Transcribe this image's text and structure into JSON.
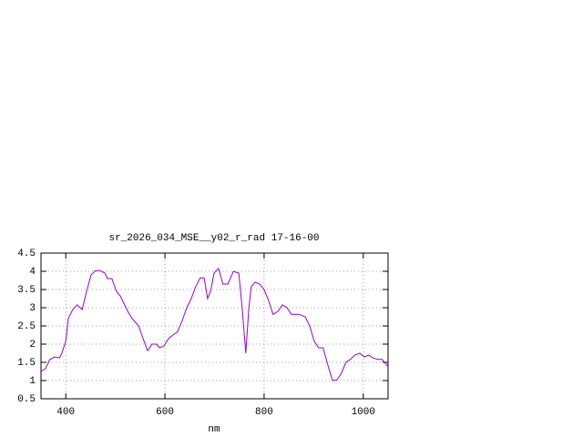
{
  "chart_data": {
    "type": "line",
    "title": "sr_2026_034_MSE__y02_r_rad 17-16-00",
    "xlabel": "nm",
    "x": [
      350,
      359,
      368,
      378,
      387,
      392,
      400,
      405,
      414,
      423,
      429,
      433,
      442,
      451,
      460,
      469,
      479,
      484,
      493,
      502,
      510,
      525,
      534,
      547,
      556,
      565,
      574,
      583,
      589,
      598,
      607,
      616,
      625,
      635,
      644,
      653,
      662,
      671,
      679,
      686,
      692,
      699,
      708,
      717,
      727,
      738,
      749,
      756,
      763,
      769,
      774,
      782,
      791,
      800,
      809,
      818,
      828,
      837,
      846,
      855,
      870,
      883,
      892,
      901,
      910,
      919,
      928,
      938,
      947,
      956,
      965,
      974,
      983,
      993,
      1002,
      1011,
      1020,
      1029,
      1038,
      1050
    ],
    "series": [
      {
        "color": "#9400d3",
        "values": [
          1.25,
          1.33,
          1.58,
          1.65,
          1.62,
          1.75,
          2.08,
          2.7,
          2.95,
          3.08,
          3.0,
          2.95,
          3.45,
          3.9,
          4.02,
          4.02,
          3.95,
          3.8,
          3.8,
          3.45,
          3.32,
          2.9,
          2.7,
          2.5,
          2.15,
          1.82,
          2.0,
          2.0,
          1.9,
          1.95,
          2.15,
          2.25,
          2.33,
          2.65,
          3.0,
          3.25,
          3.58,
          3.82,
          3.82,
          3.25,
          3.45,
          3.95,
          4.08,
          3.65,
          3.65,
          4.0,
          3.95,
          2.95,
          1.75,
          2.95,
          3.58,
          3.7,
          3.65,
          3.5,
          3.2,
          2.82,
          2.9,
          3.08,
          3.0,
          2.82,
          2.82,
          2.75,
          2.5,
          2.08,
          1.9,
          1.9,
          1.45,
          1.0,
          1.02,
          1.2,
          1.5,
          1.58,
          1.7,
          1.75,
          1.65,
          1.7,
          1.62,
          1.58,
          1.58,
          1.38
        ]
      }
    ],
    "xlim": [
      350,
      1050
    ],
    "xticks": [
      400,
      600,
      800,
      1000
    ],
    "ylim": [
      0.5,
      4.5
    ],
    "yticks": [
      0.5,
      1,
      1.5,
      2,
      2.5,
      3,
      3.5,
      4,
      4.5
    ],
    "grid": true
  }
}
